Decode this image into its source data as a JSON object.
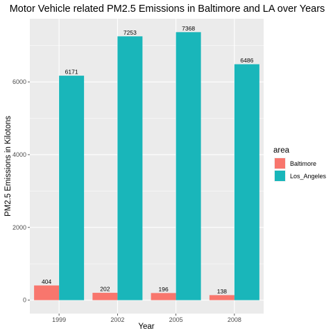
{
  "chart_data": {
    "type": "bar",
    "title": "Motor Vehicle related PM2.5 Emissions in Baltimore and LA over Years",
    "xlabel": "Year",
    "ylabel": "PM2.5 Emissions in Kilotons",
    "categories": [
      "1999",
      "2002",
      "2005",
      "2008"
    ],
    "series": [
      {
        "name": "Baltimore",
        "values": [
          404,
          202,
          196,
          138
        ],
        "color": "#F8766D"
      },
      {
        "name": "Los_Angeles",
        "values": [
          6171,
          7253,
          7368,
          6486
        ],
        "color": "#19B6BA"
      }
    ],
    "yticks": [
      0,
      2000,
      4000,
      6000
    ],
    "ylim": [
      -369,
      7737
    ],
    "legend": {
      "title": "area",
      "position": "right"
    },
    "grid": true,
    "data_labels": true
  }
}
